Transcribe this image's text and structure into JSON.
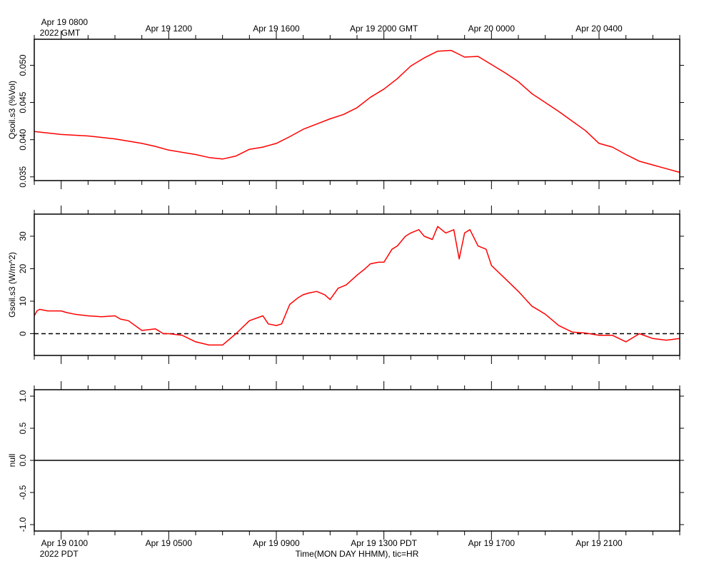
{
  "top_axis": {
    "ticks": [
      {
        "t": 0,
        "label": "Apr 19 0800",
        "sub": "2022 GMT"
      },
      {
        "t": 4,
        "label": "Apr 19 1200"
      },
      {
        "t": 8,
        "label": "Apr 19 1600"
      },
      {
        "t": 12,
        "label": "Apr 19 2000 GMT"
      },
      {
        "t": 16,
        "label": "Apr 20 0000"
      },
      {
        "t": 20,
        "label": "Apr 20 0400"
      }
    ]
  },
  "bottom_axis": {
    "ticks": [
      {
        "t": 0,
        "label": "Apr 19 0100",
        "sub": "2022 PDT"
      },
      {
        "t": 4,
        "label": "Apr 19 0500"
      },
      {
        "t": 8,
        "label": "Apr 19 0900"
      },
      {
        "t": 12,
        "label": "Apr 19 1300 PDT"
      },
      {
        "t": 16,
        "label": "Apr 19 1700"
      },
      {
        "t": 20,
        "label": "Apr 19 2100"
      }
    ],
    "title": "Time(MON DAY HHMM), tic=HR"
  },
  "chart_data": [
    {
      "type": "line",
      "ylabel": "Qsoil.s3 (%Vol)",
      "ylim": [
        0.0345,
        0.0535
      ],
      "yticks": [
        0.035,
        0.04,
        0.045,
        0.05
      ],
      "ytick_labels": [
        "0.035",
        "0.040",
        "0.045",
        "0.050"
      ],
      "xlim": [
        -1,
        23
      ],
      "color": "#ff0000",
      "series": [
        {
          "x": [
            -1,
            0,
            1,
            2,
            3,
            3.5,
            4,
            5,
            5.5,
            6,
            6.5,
            7,
            7.5,
            8,
            8.5,
            9,
            9.5,
            10,
            10.5,
            11,
            11.5,
            12,
            12.5,
            13,
            13.5,
            14,
            14.5,
            15,
            15.5,
            16,
            16.5,
            17,
            17.5,
            18,
            18.5,
            19,
            19.5,
            20,
            20.5,
            21,
            21.5,
            22,
            22.5,
            23
          ],
          "values": [
            0.0411,
            0.0407,
            0.0405,
            0.0401,
            0.0395,
            0.0391,
            0.0386,
            0.038,
            0.0376,
            0.0374,
            0.0378,
            0.0387,
            0.039,
            0.0395,
            0.0404,
            0.0414,
            0.0421,
            0.0428,
            0.0434,
            0.0443,
            0.0457,
            0.0468,
            0.0482,
            0.0499,
            0.051,
            0.0519,
            0.052,
            0.0511,
            0.0512,
            0.0501,
            0.049,
            0.0478,
            0.0462,
            0.045,
            0.0438,
            0.0425,
            0.0412,
            0.0395,
            0.039,
            0.038,
            0.0371,
            0.0366,
            0.0361,
            0.0356
          ]
        }
      ]
    },
    {
      "type": "line",
      "ylabel": "Gsoil.s3 (W/m^2)",
      "ylim": [
        -6.7,
        36.8
      ],
      "yticks": [
        0,
        10,
        20,
        30
      ],
      "ytick_labels": [
        "0",
        "10",
        "20",
        "30"
      ],
      "xlim": [
        -1,
        23
      ],
      "color": "#ff0000",
      "reference_line": {
        "y": 0,
        "style": "dashed"
      },
      "series": [
        {
          "x": [
            -1,
            -0.9,
            -0.8,
            -0.5,
            0,
            0.2,
            0.5,
            1,
            1.5,
            2,
            2.2,
            2.5,
            3,
            3.5,
            3.8,
            4,
            4.5,
            5,
            5.5,
            6,
            6.5,
            7,
            7.5,
            7.7,
            8,
            8.2,
            8.5,
            8.8,
            9,
            9.2,
            9.5,
            9.8,
            10,
            10.3,
            10.6,
            11,
            11.3,
            11.5,
            11.8,
            12,
            12.3,
            12.5,
            12.8,
            13,
            13.3,
            13.5,
            13.8,
            14,
            14.3,
            14.6,
            14.8,
            15,
            15.2,
            15.5,
            15.8,
            16,
            16.5,
            17,
            17.5,
            18,
            18.5,
            19,
            19.5,
            20,
            20.5,
            21,
            21.5,
            22,
            22.5,
            23
          ],
          "values": [
            5.5,
            7,
            7.5,
            7,
            7,
            6.5,
            6,
            5.5,
            5.2,
            5.5,
            4.5,
            4,
            1,
            1.5,
            0,
            0,
            -0.5,
            -2.5,
            -3.5,
            -3.5,
            0,
            4,
            5.5,
            3,
            2.5,
            3,
            9,
            11,
            12,
            12.5,
            13,
            12,
            10.5,
            14,
            15,
            18,
            20,
            21.5,
            22,
            22,
            26,
            27,
            30,
            31,
            32,
            30,
            29,
            33,
            31,
            32,
            23,
            31,
            32,
            27,
            26,
            21,
            17,
            13,
            8.5,
            6,
            2.5,
            0.5,
            0.2,
            -0.5,
            -0.5,
            -2.5,
            0,
            -1.5,
            -2,
            -1.5
          ]
        }
      ]
    },
    {
      "type": "line",
      "ylabel": "null",
      "ylim": [
        -1.1,
        1.1
      ],
      "yticks": [
        -1,
        -0.5,
        0,
        0.5,
        1
      ],
      "ytick_labels": [
        "-1.0",
        "-0.5",
        "0.0",
        "0.5",
        "1.0"
      ],
      "xlim": [
        -1,
        23
      ],
      "color": "#000000",
      "series": [
        {
          "x": [
            -1,
            23
          ],
          "values": [
            0,
            0
          ]
        }
      ]
    }
  ]
}
